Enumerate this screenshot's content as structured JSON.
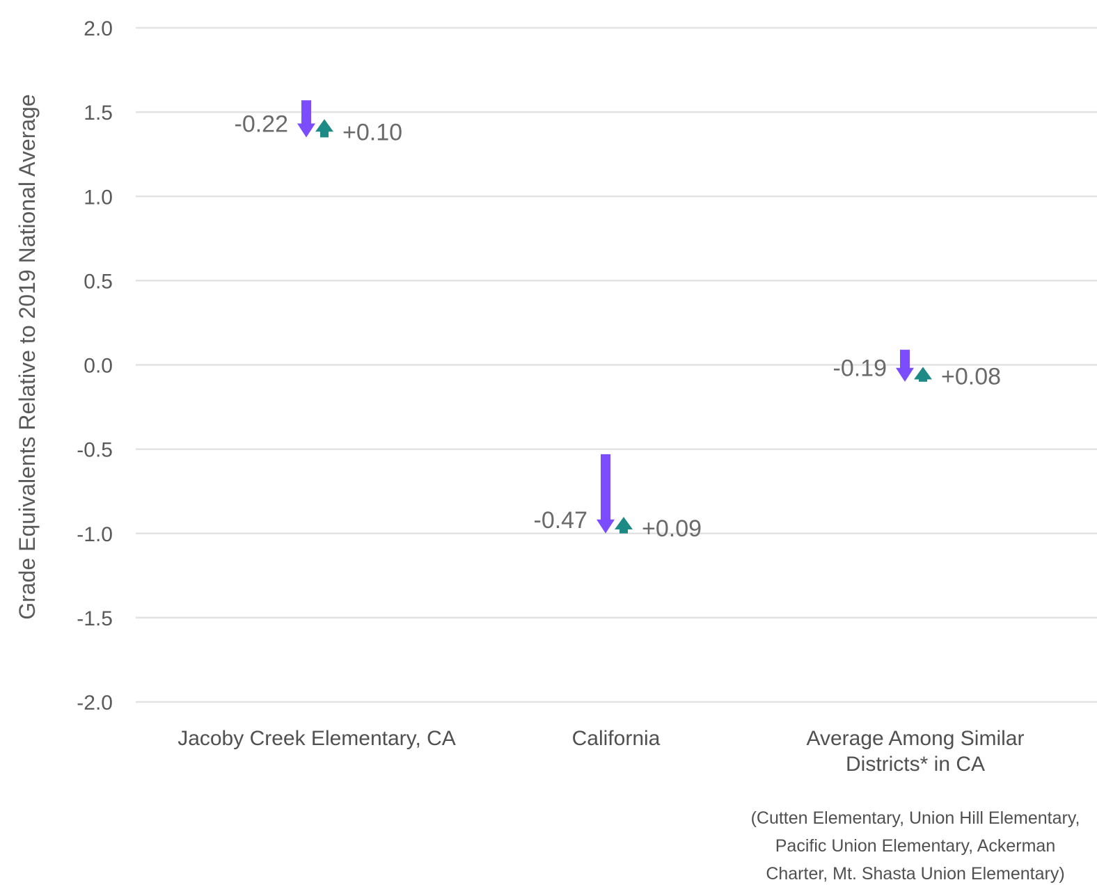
{
  "chart_data": {
    "type": "arrow",
    "ylabel": "Grade Equivalents Relative to 2019 National Average",
    "xlabel": "",
    "ylim": [
      -2.0,
      2.0
    ],
    "yticks": [
      "2.0",
      "1.5",
      "1.0",
      "0.5",
      "0.0",
      "-0.5",
      "-1.0",
      "-1.5",
      "-2.0"
    ],
    "grid": true,
    "categories": [
      {
        "label_lines": [
          "Jacoby Creek Elementary, CA"
        ],
        "start": 1.57,
        "decline": -0.22,
        "recovery": 0.1,
        "decline_label": "-0.22",
        "recovery_label": "+0.10"
      },
      {
        "label_lines": [
          "California"
        ],
        "start": -0.53,
        "decline": -0.47,
        "recovery": 0.09,
        "decline_label": "-0.47",
        "recovery_label": "+0.09"
      },
      {
        "label_lines": [
          "Average Among Similar",
          "Districts* in CA"
        ],
        "start": 0.09,
        "decline": -0.19,
        "recovery": 0.08,
        "decline_label": "-0.19",
        "recovery_label": "+0.08"
      }
    ],
    "footnote_lines": [
      "(Cutten Elementary, Union Hill Elementary,",
      "Pacific Union Elementary, Ackerman",
      "Charter, Mt. Shasta Union Elementary)"
    ],
    "colors": {
      "decline": "#7c4dff",
      "recovery": "#1e8a86",
      "grid": "#e2e2e2"
    }
  }
}
